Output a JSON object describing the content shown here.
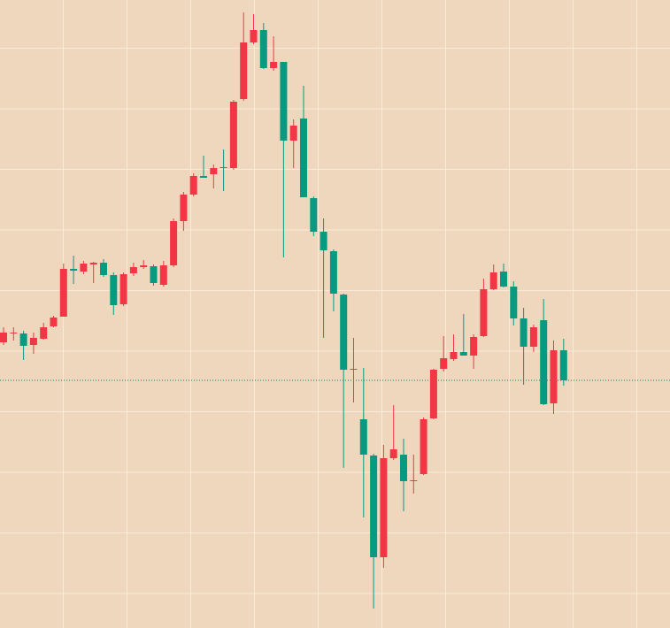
{
  "chart_data": {
    "type": "candlestick",
    "up_color": "#f23645",
    "down_color": "#089981",
    "ylim": [
      0,
      710
    ],
    "last_price_line": true,
    "last_price_line_color": "#1b7a6b",
    "open": [
      323,
      333,
      333,
      320,
      327,
      341,
      352,
      406,
      403,
      411,
      413,
      399,
      366,
      401,
      408,
      409,
      388,
      410,
      460,
      490,
      511,
      513,
      521,
      520,
      598,
      662,
      676,
      633,
      640,
      551,
      576,
      486,
      448,
      426,
      377,
      292,
      236,
      195,
      80,
      192,
      196,
      166,
      174,
      237,
      293,
      304,
      312,
      308,
      330,
      383,
      403,
      386,
      350,
      318,
      348,
      254,
      314
    ],
    "high": [
      340,
      340,
      336,
      334,
      345,
      353,
      412,
      421,
      415,
      414,
      417,
      402,
      402,
      413,
      416,
      411,
      415,
      463,
      493,
      514,
      534,
      524,
      541,
      597,
      696,
      694,
      684,
      669,
      640,
      575,
      613,
      488,
      463,
      428,
      378,
      328,
      294,
      197,
      207,
      252,
      214,
      196,
      238,
      293,
      330,
      332,
      355,
      332,
      395,
      411,
      412,
      392,
      362,
      343,
      372,
      325,
      327
    ],
    "low": [
      320,
      325,
      303,
      310,
      326,
      340,
      352,
      389,
      400,
      390,
      397,
      354,
      364,
      398,
      406,
      387,
      386,
      408,
      449,
      488,
      509,
      497,
      494,
      518,
      596,
      660,
      632,
      630,
      419,
      520,
      487,
      443,
      328,
      358,
      181,
      255,
      125,
      22,
      68,
      190,
      132,
      152,
      173,
      236,
      290,
      302,
      308,
      293,
      329,
      382,
      385,
      342,
      275,
      312,
      252,
      242,
      274
    ],
    "close": [
      334,
      334,
      319,
      328,
      340,
      351,
      406,
      404,
      412,
      413,
      399,
      365,
      400,
      408,
      410,
      390,
      410,
      460,
      490,
      511,
      509,
      520,
      520,
      595,
      662,
      676,
      633,
      640,
      551,
      568,
      487,
      448,
      427,
      378,
      292,
      293,
      196,
      80,
      192,
      202,
      166,
      167,
      236,
      292,
      305,
      312,
      308,
      329,
      383,
      402,
      386,
      350,
      318,
      340,
      253,
      314,
      280
    ]
  }
}
